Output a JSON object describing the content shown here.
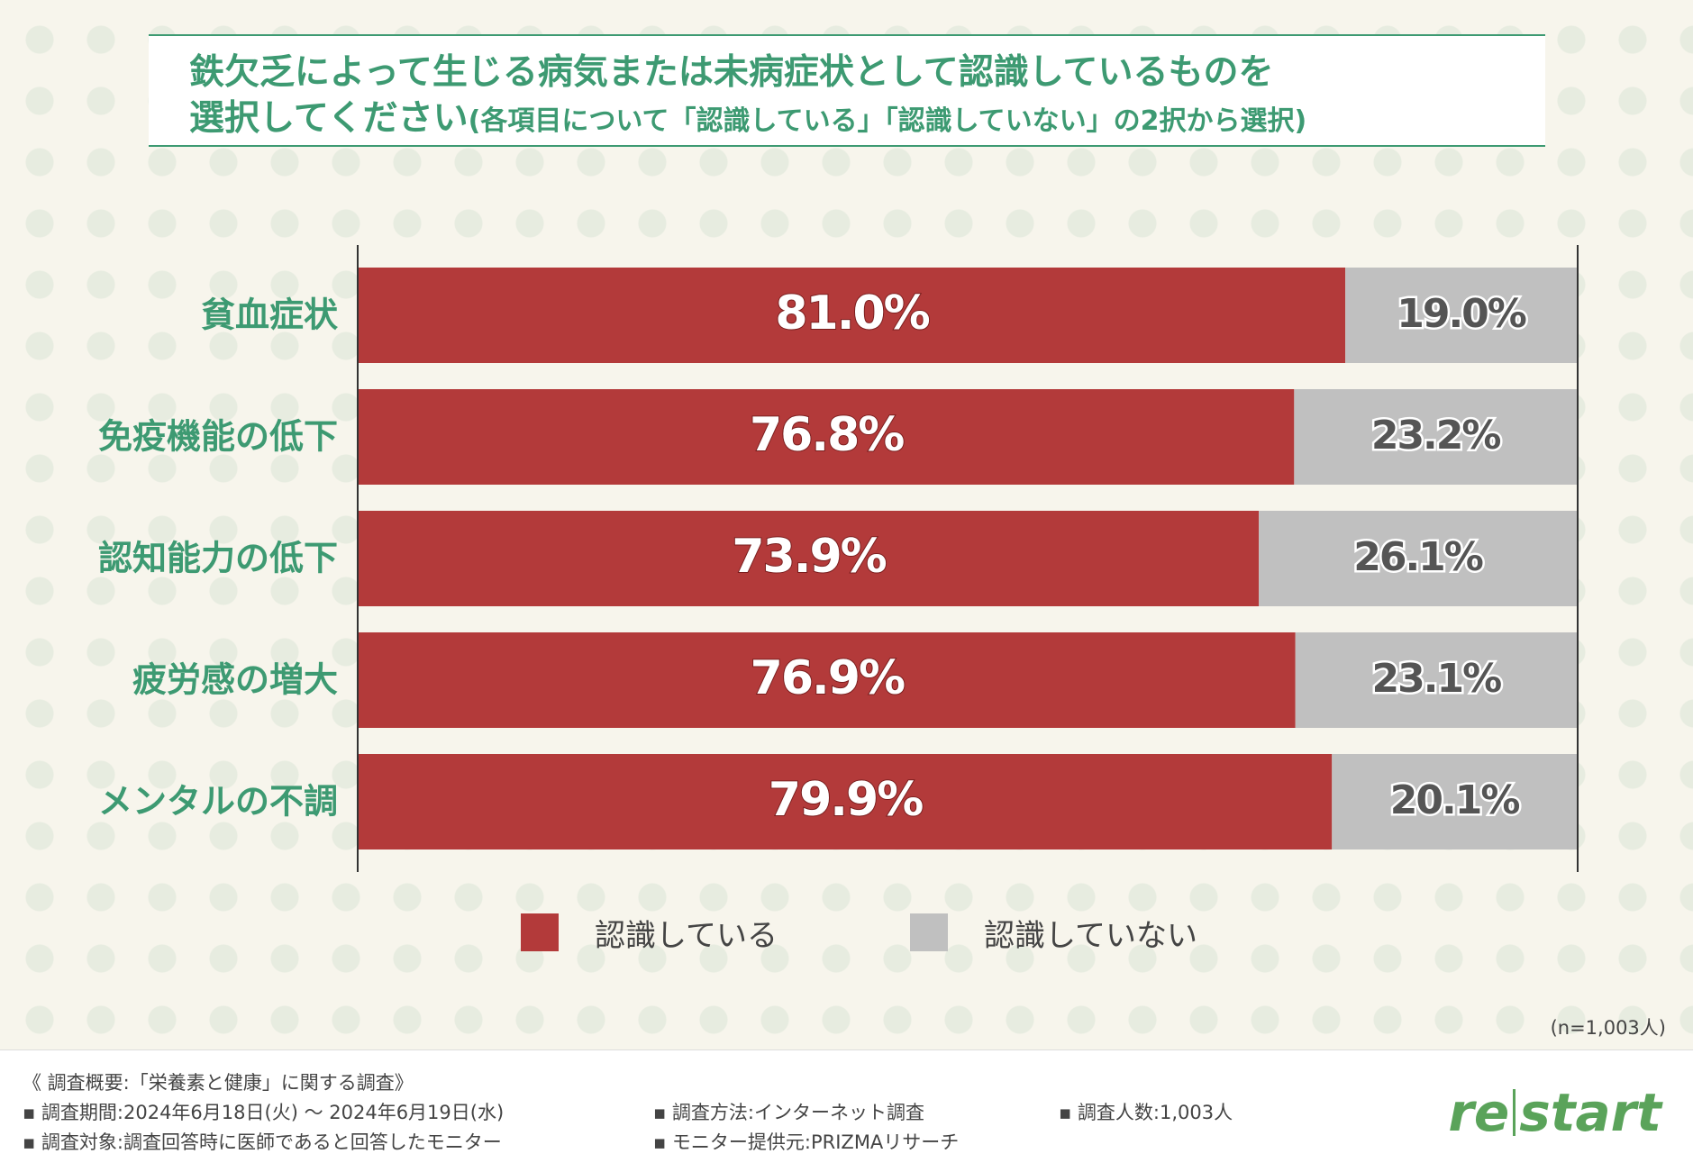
{
  "title": {
    "line1": "鉄欠乏によって生じる病気または未病症状として認識しているものを",
    "line2": "選択してください",
    "line2_sub": "(各項目について「認識している」「認識していない」の2択から選択)"
  },
  "chart_data": {
    "type": "bar",
    "orientation": "horizontal",
    "stacked": true,
    "categories": [
      "貧血症状",
      "免疫機能の低下",
      "認知能力の低下",
      "疲労感の増大",
      "メンタルの不調"
    ],
    "series": [
      {
        "name": "認識している",
        "color": "#b33a3a",
        "values": [
          81.0,
          76.8,
          73.9,
          76.9,
          79.9
        ],
        "labels": [
          "81.0%",
          "76.8%",
          "73.9%",
          "76.9%",
          "79.9%"
        ]
      },
      {
        "name": "認識していない",
        "color": "#c0c0c0",
        "values": [
          19.0,
          23.2,
          26.1,
          23.1,
          20.1
        ],
        "labels": [
          "19.0%",
          "23.2%",
          "26.1%",
          "23.1%",
          "20.1%"
        ]
      }
    ],
    "xlim": [
      0,
      100
    ],
    "unit": "%",
    "grid": false,
    "legend": "bottom"
  },
  "legend": {
    "recognized": "認識している",
    "not_recognized": "認識していない"
  },
  "sample_note": "(n=1,003人)",
  "footer": {
    "summary": "《 調査概要:「栄養素と健康」に関する調査》",
    "period": "▪ 調査期間:2024年6月18日(火) 〜 2024年6月19日(水)",
    "target": "▪ 調査対象:調査回答時に医師であると回答したモニター",
    "method": "▪ 調査方法:インターネット調査",
    "provider": "▪ モニター提供元:PRIZMAリサーチ",
    "count": "▪ 調査人数:1,003人"
  },
  "logo": {
    "left": "re",
    "right": "start"
  },
  "colors": {
    "accent": "#3d9a72",
    "recognized": "#b33a3a",
    "not_recognized": "#c0c0c0"
  }
}
